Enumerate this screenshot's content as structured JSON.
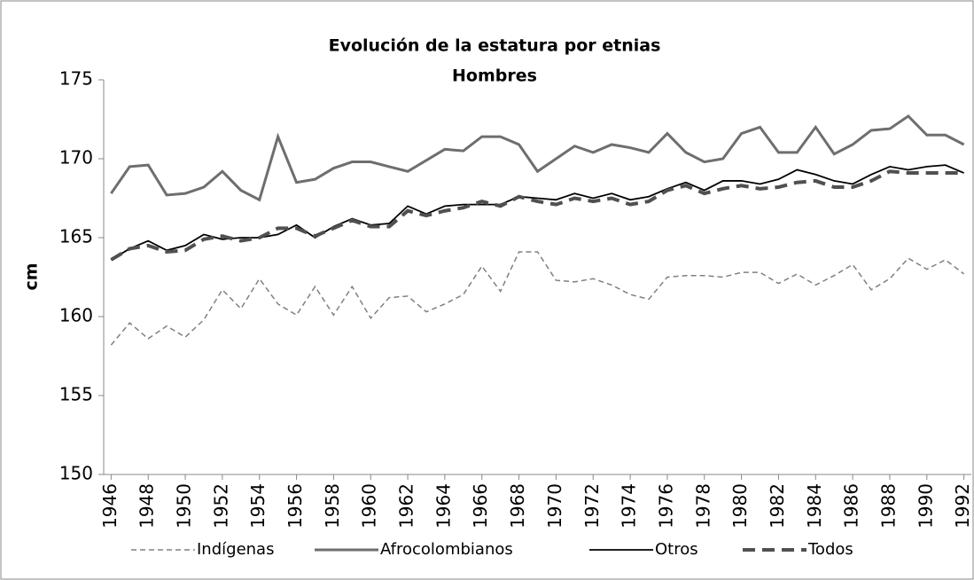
{
  "chart_data": {
    "type": "line",
    "title": "Evolución de la estatura por etnias",
    "subtitle": "Hombres",
    "y_label": "cm",
    "x": [
      1946,
      1947,
      1948,
      1949,
      1950,
      1951,
      1952,
      1953,
      1954,
      1955,
      1956,
      1957,
      1958,
      1959,
      1960,
      1961,
      1962,
      1963,
      1964,
      1965,
      1966,
      1967,
      1968,
      1969,
      1970,
      1971,
      1972,
      1973,
      1974,
      1975,
      1976,
      1977,
      1978,
      1979,
      1980,
      1981,
      1982,
      1983,
      1984,
      1985,
      1986,
      1987,
      1988,
      1989,
      1990,
      1991,
      1992
    ],
    "xlim": [
      1945.6,
      1992.4
    ],
    "xticks": [
      1946,
      1948,
      1950,
      1952,
      1954,
      1956,
      1958,
      1960,
      1962,
      1964,
      1966,
      1968,
      1970,
      1972,
      1974,
      1976,
      1978,
      1980,
      1982,
      1984,
      1986,
      1988,
      1990,
      1992
    ],
    "ylim": [
      150,
      175
    ],
    "yticks": [
      150,
      155,
      160,
      165,
      170,
      175
    ],
    "grid": false,
    "legend": "bottom",
    "series": [
      {
        "name": "Indígenas",
        "color": "#808080",
        "dash": "6,4",
        "width": 1.5,
        "values": [
          158.2,
          159.6,
          158.6,
          159.4,
          158.7,
          159.8,
          161.7,
          160.5,
          162.4,
          160.8,
          160.1,
          161.9,
          160.1,
          161.9,
          159.9,
          161.2,
          161.3,
          160.3,
          160.8,
          161.4,
          163.2,
          161.6,
          164.1,
          164.1,
          162.3,
          162.2,
          162.4,
          162.0,
          161.4,
          161.1,
          162.5,
          162.6,
          162.6,
          162.5,
          162.8,
          162.8,
          162.1,
          162.7,
          162.0,
          162.6,
          163.3,
          161.7,
          162.4,
          163.7,
          163.0,
          163.6,
          162.7
        ]
      },
      {
        "name": "Afrocolombianos",
        "color": "#6e6e6e",
        "dash": "none",
        "width": 3,
        "values": [
          167.8,
          169.5,
          169.6,
          167.7,
          167.8,
          168.2,
          169.2,
          168.0,
          167.4,
          171.4,
          168.5,
          168.7,
          169.4,
          169.8,
          169.8,
          169.5,
          169.2,
          169.9,
          170.6,
          170.5,
          171.4,
          171.4,
          170.9,
          169.2,
          170.0,
          170.8,
          170.4,
          170.9,
          170.7,
          170.4,
          171.6,
          170.4,
          169.8,
          170.0,
          171.6,
          172.0,
          170.4,
          170.4,
          172.0,
          170.3,
          170.9,
          171.8,
          171.9,
          172.7,
          171.5,
          171.5,
          170.9
        ]
      },
      {
        "name": "Otros",
        "color": "#000000",
        "dash": "none",
        "width": 1.8,
        "values": [
          163.6,
          164.3,
          164.8,
          164.2,
          164.5,
          165.2,
          164.9,
          165.0,
          165.0,
          165.2,
          165.8,
          165.0,
          165.7,
          166.2,
          165.8,
          165.9,
          167.0,
          166.5,
          167.0,
          167.1,
          167.1,
          167.1,
          167.6,
          167.5,
          167.4,
          167.8,
          167.5,
          167.8,
          167.4,
          167.6,
          168.1,
          168.5,
          168.0,
          168.6,
          168.6,
          168.4,
          168.7,
          169.3,
          169.0,
          168.6,
          168.4,
          169.0,
          169.5,
          169.3,
          169.5,
          169.6,
          169.1
        ]
      },
      {
        "name": "Todos",
        "color": "#505050",
        "dash": "14,8",
        "width": 4,
        "values": [
          163.6,
          164.3,
          164.5,
          164.1,
          164.2,
          164.9,
          165.1,
          164.8,
          165.0,
          165.6,
          165.6,
          165.1,
          165.6,
          166.1,
          165.7,
          165.7,
          166.7,
          166.4,
          166.7,
          166.9,
          167.3,
          167.0,
          167.6,
          167.3,
          167.1,
          167.5,
          167.3,
          167.5,
          167.1,
          167.3,
          168.0,
          168.3,
          167.8,
          168.1,
          168.3,
          168.1,
          168.2,
          168.5,
          168.6,
          168.2,
          168.2,
          168.6,
          169.2,
          169.1,
          169.1,
          169.1,
          169.1
        ]
      }
    ]
  }
}
